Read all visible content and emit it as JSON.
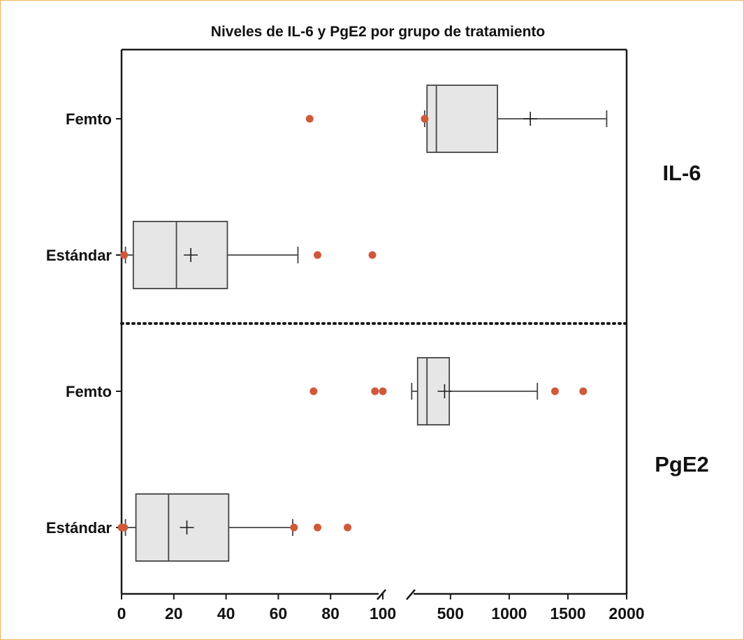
{
  "chart_data": {
    "type": "box",
    "title": "Niveles de IL-6 y PgE2 por grupo de tratamiento",
    "x_axis": {
      "broken": true,
      "segments": [
        {
          "range": [
            0,
            100
          ],
          "ticks": [
            "0",
            "20",
            "40",
            "60",
            "80",
            "100"
          ]
        },
        {
          "range": [
            150,
            2000
          ],
          "ticks": [
            "500",
            "1000",
            "1500",
            "2000"
          ]
        }
      ]
    },
    "panels": [
      {
        "name": "IL-6",
        "groups": [
          {
            "label": "Femto",
            "box": {
              "q1": 300,
              "median": 380,
              "q3": 900,
              "mean": 1180
            },
            "whiskers": [
              280,
              1830
            ],
            "outliers": [
              72,
              280
            ]
          },
          {
            "label": "Estándar",
            "box": {
              "q1": 4.5,
              "median": 21,
              "q3": 40.5,
              "mean": 26.5
            },
            "whiskers": [
              1.5,
              67.5
            ],
            "outliers": [
              1,
              75,
              96
            ]
          }
        ]
      },
      {
        "name": "PgE2",
        "groups": [
          {
            "label": "Femto",
            "box": {
              "q1": 220,
              "median": 300,
              "q3": 490,
              "mean": 450
            },
            "whiskers": [
              170,
              1240
            ],
            "outliers": [
              73.5,
              97,
              100,
              1390,
              1630
            ]
          },
          {
            "label": "Estándar",
            "box": {
              "q1": 5.5,
              "median": 18,
              "q3": 41,
              "mean": 25
            },
            "whiskers": [
              1.5,
              65.5
            ],
            "outliers": [
              0,
              0.5,
              1,
              66,
              75,
              86.5
            ]
          }
        ]
      }
    ],
    "styles": {
      "box_fill": "#e6e6e6",
      "outlier_color": "#d0593a",
      "frame_color": "#f0b45a"
    }
  }
}
